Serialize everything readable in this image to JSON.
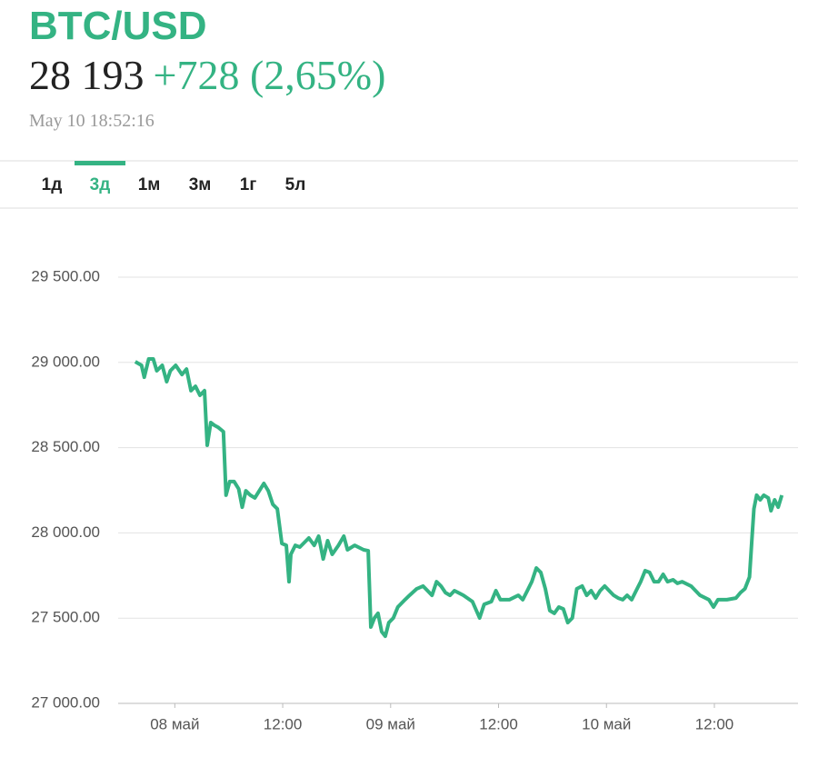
{
  "header": {
    "title": "BTC/USD",
    "price": "28 193",
    "change": "+728 (2,65%)",
    "timestamp": "May 10 18:52:16"
  },
  "tabs": [
    {
      "label": "1д"
    },
    {
      "label": "3д",
      "active": true
    },
    {
      "label": "1м"
    },
    {
      "label": "3м"
    },
    {
      "label": "1г"
    },
    {
      "label": "5л"
    }
  ],
  "chart_data": {
    "type": "line",
    "color": "#34b383",
    "grid": true,
    "x": [
      -4.4,
      -3.7,
      -3.4,
      -2.9,
      -2.4,
      -2.0,
      -1.4,
      -0.9,
      -0.5,
      0.1,
      0.8,
      1.3,
      1.8,
      2.3,
      2.8,
      3.3,
      3.6,
      4.0,
      4.4,
      4.8,
      5.4,
      5.7,
      6.1,
      6.6,
      7.1,
      7.5,
      7.9,
      8.4,
      8.9,
      9.4,
      9.9,
      10.4,
      10.9,
      11.4,
      11.9,
      12.4,
      12.7,
      12.9,
      13.4,
      13.9,
      14.9,
      15.5,
      16.0,
      16.5,
      17.0,
      17.5,
      18.2,
      18.8,
      19.2,
      20.0,
      21.0,
      21.5,
      21.8,
      22.2,
      22.6,
      23.0,
      23.4,
      23.8,
      24.3,
      24.8,
      25.6,
      26.1,
      26.9,
      27.6,
      28.1,
      28.6,
      29.1,
      29.6,
      30.1,
      30.6,
      31.1,
      32.1,
      33.1,
      33.9,
      34.4,
      35.2,
      35.7,
      36.2,
      37.2,
      38.2,
      38.7,
      39.2,
      39.7,
      40.2,
      40.7,
      41.2,
      41.7,
      42.2,
      42.7,
      43.2,
      43.7,
      44.2,
      44.7,
      45.3,
      45.8,
      46.3,
      46.8,
      47.3,
      47.8,
      48.3,
      48.8,
      49.3,
      49.8,
      50.3,
      50.8,
      51.3,
      51.8,
      52.3,
      52.8,
      53.3,
      53.8,
      54.3,
      54.8,
      55.4,
      55.9,
      56.4,
      57.4,
      58.4,
      59.4,
      59.9,
      60.4,
      60.9,
      61.4,
      62.4,
      62.9,
      63.4,
      63.9,
      64.2,
      64.4,
      64.7,
      65.1,
      65.5,
      66.0,
      66.3,
      66.7,
      67.1,
      67.5
    ],
    "values": [
      29004,
      28983,
      28913,
      29020,
      29020,
      28951,
      28983,
      28887,
      28951,
      28983,
      28929,
      28961,
      28834,
      28860,
      28807,
      28834,
      28514,
      28647,
      28631,
      28620,
      28594,
      28221,
      28301,
      28301,
      28258,
      28151,
      28247,
      28221,
      28205,
      28247,
      28290,
      28247,
      28167,
      28141,
      27938,
      27927,
      27714,
      27874,
      27927,
      27917,
      27970,
      27927,
      27981,
      27847,
      27954,
      27874,
      27927,
      27981,
      27901,
      27927,
      27901,
      27895,
      27448,
      27501,
      27528,
      27421,
      27394,
      27474,
      27501,
      27565,
      27608,
      27634,
      27672,
      27688,
      27661,
      27634,
      27714,
      27688,
      27650,
      27634,
      27661,
      27634,
      27597,
      27501,
      27581,
      27597,
      27661,
      27608,
      27608,
      27634,
      27608,
      27661,
      27714,
      27794,
      27768,
      27672,
      27544,
      27528,
      27565,
      27554,
      27474,
      27501,
      27672,
      27688,
      27634,
      27661,
      27618,
      27661,
      27688,
      27661,
      27634,
      27618,
      27608,
      27634,
      27608,
      27661,
      27714,
      27778,
      27768,
      27714,
      27714,
      27757,
      27714,
      27725,
      27704,
      27714,
      27688,
      27634,
      27608,
      27565,
      27608,
      27608,
      27608,
      27618,
      27650,
      27672,
      27741,
      27981,
      28141,
      28221,
      28194,
      28221,
      28205,
      28130,
      28194,
      28151,
      28221
    ],
    "xlim": [
      -6.3,
      69.3
    ],
    "xticks": [
      {
        "value": 0,
        "label": "08 май"
      },
      {
        "value": 12,
        "label": "12:00"
      },
      {
        "value": 24,
        "label": "09 май"
      },
      {
        "value": 36,
        "label": "12:00"
      },
      {
        "value": 48,
        "label": "10 май"
      },
      {
        "value": 60,
        "label": "12:00"
      }
    ],
    "ylim": [
      27000,
      29500
    ],
    "yticks": [
      {
        "value": 27000,
        "label": "27 000.00"
      },
      {
        "value": 27500,
        "label": "27 500.00"
      },
      {
        "value": 28000,
        "label": "28 000.00"
      },
      {
        "value": 28500,
        "label": "28 500.00"
      },
      {
        "value": 29000,
        "label": "29 000.00"
      },
      {
        "value": 29500,
        "label": "29 500.00"
      }
    ]
  }
}
